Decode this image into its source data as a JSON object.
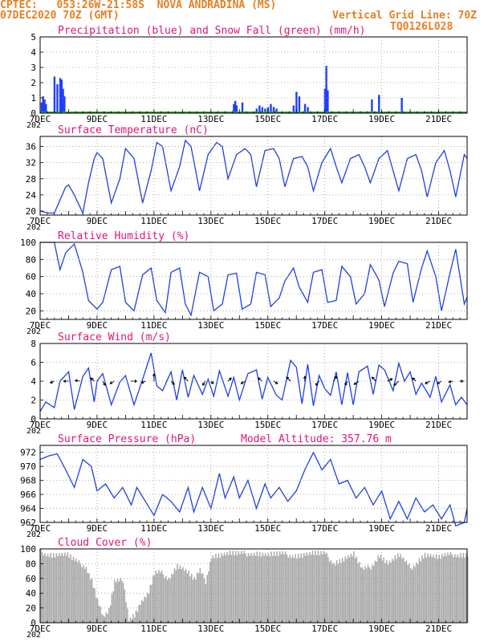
{
  "header": {
    "line1": "CPTEC:   053:26W-21:58S  NOVA ANDRADINA (MS)",
    "line2_left": "07DEC2020 70Z (GMT)",
    "line2_right": "Vertical Grid Line: 70Z",
    "line3_right": "TQ0126L028",
    "color": "#e67e22"
  },
  "x_axis": {
    "tick_labels": [
      "7DEC",
      "9DEC",
      "11DEC",
      "13DEC",
      "15DEC",
      "17DEC",
      "19DEC",
      "21DEC"
    ],
    "tick_days": [
      7,
      9,
      11,
      13,
      15,
      17,
      19,
      21
    ],
    "range_days": [
      7.0,
      22.0
    ],
    "year_fragment": "202"
  },
  "chart_data": [
    {
      "type": "bar",
      "title": "Precipitation (blue) and Snow Fall (green) (mm/h)",
      "ylim": [
        0,
        5
      ],
      "yticks": [
        0,
        1,
        2,
        3,
        4,
        5
      ],
      "series": [
        {
          "name": "Precipitation",
          "color": "#1f3fff",
          "x": [
            7.05,
            7.1,
            7.15,
            7.2,
            7.5,
            7.6,
            7.7,
            7.75,
            7.8,
            7.85,
            13.8,
            13.85,
            13.9,
            14.1,
            14.6,
            14.7,
            14.8,
            14.9,
            15.0,
            15.1,
            15.2,
            15.3,
            15.9,
            16.0,
            16.1,
            16.3,
            16.4,
            17.0,
            17.05,
            17.1,
            18.65,
            18.9,
            19.7
          ],
          "values": [
            0.7,
            1.1,
            0.9,
            0.6,
            2.4,
            1.9,
            2.3,
            2.2,
            1.6,
            1.1,
            0.6,
            0.8,
            0.5,
            0.7,
            0.3,
            0.5,
            0.4,
            0.3,
            0.4,
            0.6,
            0.4,
            0.3,
            0.5,
            1.4,
            1.1,
            0.6,
            0.4,
            1.6,
            3.1,
            1.5,
            0.9,
            1.2,
            1.0
          ]
        },
        {
          "name": "Snow Fall",
          "color": "#22aa22",
          "x": [
            7,
            22
          ],
          "values": [
            0,
            0
          ]
        }
      ]
    },
    {
      "type": "line",
      "title": "Surface Temperature (nC)",
      "ylim": [
        19,
        38.5
      ],
      "yticks": [
        20,
        24,
        28,
        32,
        36
      ],
      "series": [
        {
          "name": "Temperature",
          "color": "#2040e0",
          "x": [
            7.0,
            7.3,
            7.5,
            7.9,
            8.0,
            8.2,
            8.5,
            8.7,
            8.9,
            9.0,
            9.2,
            9.5,
            9.8,
            10.0,
            10.3,
            10.6,
            10.9,
            11.1,
            11.3,
            11.6,
            11.9,
            12.1,
            12.3,
            12.6,
            12.9,
            13.2,
            13.4,
            13.6,
            13.9,
            14.2,
            14.4,
            14.6,
            14.9,
            15.2,
            15.4,
            15.6,
            15.9,
            16.2,
            16.4,
            16.6,
            16.9,
            17.2,
            17.4,
            17.6,
            17.9,
            18.2,
            18.4,
            18.6,
            18.9,
            19.2,
            19.4,
            19.6,
            19.9,
            20.2,
            20.4,
            20.6,
            20.9,
            21.2,
            21.4,
            21.6,
            21.9,
            22.0
          ],
          "values": [
            20,
            19.5,
            19.5,
            26,
            26.5,
            24,
            19.5,
            27,
            33,
            34.5,
            33,
            22,
            28,
            35.5,
            33,
            22,
            30,
            37,
            36,
            25,
            31,
            37.5,
            36,
            25,
            34,
            37,
            36,
            28,
            34,
            35.5,
            34,
            26,
            35,
            35.5,
            33,
            26,
            33,
            33.5,
            31,
            25,
            32,
            35.5,
            31,
            27,
            33,
            34,
            31,
            27,
            33,
            35,
            30,
            25,
            33,
            34,
            30,
            23.5,
            32,
            35,
            30,
            23.5,
            34,
            33
          ]
        }
      ]
    },
    {
      "type": "line",
      "title": "Relative Humidity (%)",
      "ylim": [
        10,
        100
      ],
      "yticks": [
        20,
        40,
        60,
        80,
        100
      ],
      "series": [
        {
          "name": "Relative Humidity",
          "color": "#2040e0",
          "x": [
            7.0,
            7.5,
            7.7,
            7.9,
            8.2,
            8.5,
            8.7,
            9.0,
            9.2,
            9.5,
            9.8,
            10.0,
            10.3,
            10.6,
            10.9,
            11.1,
            11.4,
            11.6,
            11.9,
            12.1,
            12.3,
            12.6,
            12.9,
            13.1,
            13.4,
            13.6,
            13.9,
            14.1,
            14.4,
            14.6,
            14.9,
            15.1,
            15.4,
            15.6,
            15.9,
            16.1,
            16.4,
            16.6,
            16.9,
            17.1,
            17.4,
            17.6,
            17.9,
            18.1,
            18.4,
            18.6,
            18.9,
            19.1,
            19.4,
            19.6,
            19.9,
            20.1,
            20.4,
            20.6,
            20.9,
            21.1,
            21.4,
            21.6,
            21.9,
            22.0
          ],
          "values": [
            100,
            100,
            68,
            88,
            98,
            65,
            32,
            22,
            30,
            68,
            72,
            30,
            20,
            62,
            70,
            32,
            18,
            65,
            70,
            28,
            15,
            65,
            60,
            20,
            28,
            62,
            64,
            22,
            28,
            65,
            62,
            25,
            35,
            55,
            70,
            48,
            30,
            65,
            68,
            30,
            32,
            72,
            60,
            28,
            40,
            74,
            56,
            25,
            64,
            78,
            75,
            30,
            70,
            90,
            60,
            20,
            64,
            92,
            28,
            36
          ]
        }
      ]
    },
    {
      "type": "line",
      "title": "Surface Wind (m/s)",
      "ylim": [
        0,
        8
      ],
      "yticks": [
        0,
        2,
        4,
        6,
        8
      ],
      "series": [
        {
          "name": "Wind Speed",
          "color": "#2040e0",
          "x": [
            7.0,
            7.2,
            7.5,
            7.7,
            8.0,
            8.2,
            8.5,
            8.7,
            8.9,
            9.0,
            9.2,
            9.5,
            9.8,
            10.0,
            10.3,
            10.6,
            10.9,
            11.1,
            11.3,
            11.6,
            11.8,
            12.0,
            12.2,
            12.4,
            12.7,
            12.9,
            13.1,
            13.3,
            13.6,
            13.8,
            14.0,
            14.3,
            14.6,
            14.8,
            15.0,
            15.3,
            15.5,
            15.8,
            16.0,
            16.2,
            16.4,
            16.6,
            16.8,
            17.0,
            17.2,
            17.4,
            17.6,
            17.8,
            18.0,
            18.2,
            18.5,
            18.7,
            18.9,
            19.1,
            19.4,
            19.6,
            19.8,
            20.0,
            20.2,
            20.4,
            20.7,
            20.9,
            21.1,
            21.4,
            21.6,
            21.8,
            22.0
          ],
          "values": [
            0.8,
            1.8,
            1.2,
            4.0,
            5.0,
            1.0,
            4.5,
            5.4,
            1.8,
            4.0,
            4.8,
            1.5,
            3.9,
            4.6,
            1.5,
            4.2,
            7.0,
            3.5,
            3.0,
            5.0,
            2.0,
            5.2,
            2.3,
            4.6,
            2.6,
            4.2,
            2.4,
            5.1,
            2.4,
            4.4,
            2.0,
            4.8,
            5.2,
            2.1,
            4.4,
            2.5,
            2.0,
            6.2,
            5.5,
            1.6,
            5.8,
            1.4,
            4.6,
            3.2,
            2.5,
            5.0,
            1.5,
            4.9,
            1.5,
            5.0,
            5.6,
            2.6,
            5.7,
            5.2,
            3.0,
            5.9,
            4.0,
            5.0,
            2.6,
            3.8,
            2.3,
            4.5,
            1.8,
            3.6,
            1.5,
            2.3,
            1.5
          ]
        }
      ],
      "vectors": {
        "color": "#000000",
        "x": [
          7.5,
          8.0,
          8.4,
          8.9,
          9.2,
          9.6,
          10.2,
          10.7,
          11.0,
          11.6,
          12.2,
          12.8,
          13.0,
          13.6,
          14.2,
          14.8,
          15.2,
          15.8,
          16.3,
          16.8,
          17.3,
          17.8,
          18.2,
          18.8,
          19.2,
          19.6,
          20.2,
          20.7,
          21.1,
          21.5,
          21.9
        ],
        "level": [
          4,
          4,
          4,
          4,
          4,
          4,
          4,
          4,
          4,
          4,
          4,
          4,
          4,
          4,
          4,
          4,
          4,
          4,
          4,
          4,
          4,
          4,
          4,
          4,
          4,
          4,
          4,
          4,
          4,
          4,
          4
        ],
        "dx": [
          -5,
          -6,
          -6,
          -4,
          3,
          -5,
          7,
          -5,
          0,
          4,
          -5,
          -3,
          3,
          4,
          -5,
          -5,
          5,
          -5,
          0,
          -4,
          4,
          -3,
          -6,
          -5,
          6,
          -6,
          -4,
          -6,
          -5,
          -5,
          -5
        ],
        "dy": [
          2,
          0,
          -1,
          -4,
          5,
          3,
          0,
          2,
          -9,
          4,
          -5,
          5,
          3,
          -4,
          3,
          -4,
          3,
          -5,
          -6,
          5,
          -6,
          5,
          4,
          -5,
          -3,
          5,
          -4,
          3,
          3,
          1,
          0
        ]
      }
    },
    {
      "type": "line",
      "title": "Surface Pressure (hPa)",
      "annotation": "Model Altitude: 357.76 m",
      "ylim": [
        962,
        973
      ],
      "yticks": [
        962,
        964,
        966,
        968,
        970,
        972
      ],
      "series": [
        {
          "name": "Surface Pressure",
          "color": "#2040e0",
          "x": [
            7.0,
            7.3,
            7.6,
            7.9,
            8.2,
            8.5,
            8.8,
            9.0,
            9.3,
            9.6,
            9.9,
            10.2,
            10.4,
            10.7,
            11.0,
            11.3,
            11.6,
            11.9,
            12.2,
            12.4,
            12.7,
            13.0,
            13.3,
            13.5,
            13.8,
            14.0,
            14.3,
            14.6,
            14.9,
            15.1,
            15.4,
            15.7,
            16.0,
            16.3,
            16.6,
            16.9,
            17.2,
            17.5,
            17.8,
            18.1,
            18.4,
            18.7,
            19.0,
            19.3,
            19.6,
            19.9,
            20.2,
            20.5,
            20.8,
            21.1,
            21.4,
            21.6,
            21.9,
            22.0
          ],
          "values": [
            971,
            971.5,
            971.8,
            969.5,
            967,
            971,
            970,
            966.5,
            967.5,
            965.5,
            967,
            964.5,
            967,
            965,
            963,
            966,
            965,
            963.5,
            967,
            963.5,
            967,
            964,
            969,
            965.5,
            968.5,
            965.5,
            968,
            964,
            967.5,
            965.5,
            967,
            965,
            966.5,
            969.5,
            972,
            969.5,
            971,
            967.5,
            968,
            965.5,
            967,
            964.5,
            966.5,
            962.5,
            965,
            962.5,
            965.5,
            963.5,
            964.5,
            962.5,
            964.5,
            961.5,
            962,
            964
          ]
        }
      ]
    },
    {
      "type": "area",
      "title": "Cloud Cover (%)",
      "ylim": [
        0,
        100
      ],
      "yticks": [
        0,
        20,
        40,
        60,
        80,
        100
      ],
      "series": [
        {
          "name": "Cloud Cover",
          "color": "#a6a6a6",
          "x": [
            7.0,
            7.4,
            7.9,
            8.2,
            8.6,
            8.8,
            9.0,
            9.2,
            9.4,
            9.6,
            9.9,
            10.1,
            10.3,
            10.5,
            10.8,
            11.0,
            11.2,
            11.5,
            11.8,
            12.1,
            12.4,
            12.6,
            12.8,
            13.0,
            13.3,
            13.6,
            14.0,
            14.5,
            15.0,
            15.5,
            16.0,
            16.5,
            17.0,
            17.3,
            17.6,
            18.0,
            18.3,
            18.6,
            18.9,
            19.2,
            19.6,
            20.0,
            20.5,
            21.0,
            21.5,
            22.0
          ],
          "values": [
            100,
            96,
            97,
            88,
            80,
            62,
            35,
            12,
            20,
            58,
            62,
            10,
            15,
            30,
            45,
            70,
            72,
            65,
            82,
            75,
            62,
            74,
            60,
            95,
            96,
            98,
            97,
            99,
            96,
            97,
            95,
            98,
            97,
            85,
            90,
            97,
            75,
            80,
            96,
            85,
            95,
            78,
            97,
            92,
            97,
            96
          ]
        }
      ]
    }
  ]
}
